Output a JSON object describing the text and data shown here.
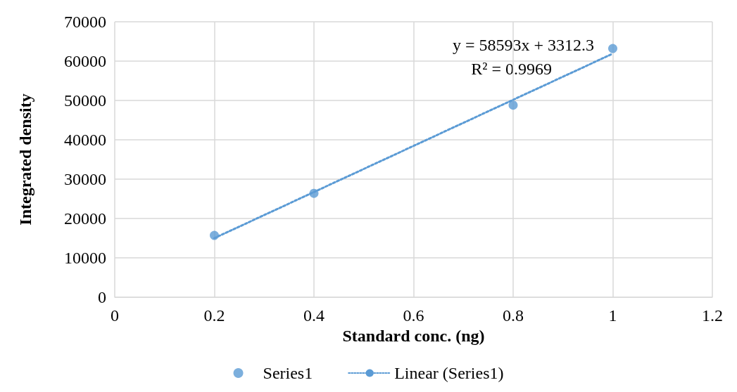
{
  "chart_data": {
    "type": "scatter",
    "xlabel": "Standard conc. (ng)",
    "ylabel": "Integrated density",
    "series": [
      {
        "name": "Series1",
        "color": "#5b9bd5",
        "x": [
          0.2,
          0.4,
          0.8,
          1.0
        ],
        "values": [
          15700,
          26400,
          48800,
          63200
        ],
        "marker": "circle"
      },
      {
        "name": "Linear (Series1)",
        "type": "line",
        "color": "#5b9bd5",
        "x": [
          0.2,
          1.0
        ],
        "values": [
          15000,
          61900
        ],
        "line_style": "dotted",
        "marker": "none"
      }
    ],
    "xlim": [
      0,
      1.2
    ],
    "xticks": [
      0,
      0.2,
      0.4,
      0.6,
      0.8,
      1,
      1.2
    ],
    "ylim": [
      0,
      70000
    ],
    "yticks": [
      0,
      10000,
      20000,
      30000,
      40000,
      50000,
      60000,
      70000
    ],
    "grid": true,
    "legend": "bottom",
    "annotations": [
      "y = 58593x + 3312.3",
      "R² = 0.9969"
    ]
  }
}
